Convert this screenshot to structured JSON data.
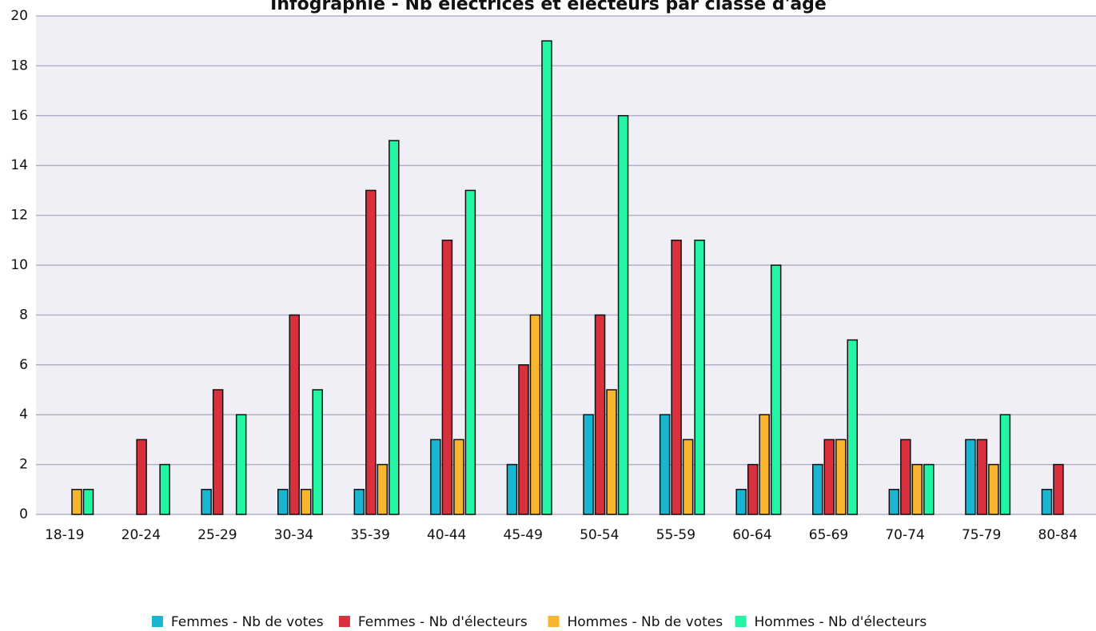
{
  "chart_data": {
    "type": "bar",
    "title": "Infographie - Nb électrices et électeurs par classe d'âge",
    "categories": [
      "18-19",
      "20-24",
      "25-29",
      "30-34",
      "35-39",
      "40-44",
      "45-49",
      "50-54",
      "55-59",
      "60-64",
      "65-69",
      "70-74",
      "75-79",
      "80-84"
    ],
    "series": [
      {
        "name": "Femmes - Nb de votes",
        "color": "#19b6d2",
        "values": [
          0,
          0,
          1,
          1,
          1,
          3,
          2,
          4,
          4,
          1,
          2,
          1,
          3,
          1
        ]
      },
      {
        "name": "Femmes - Nb d'électeurs",
        "color": "#d9303e",
        "values": [
          0,
          3,
          5,
          8,
          13,
          11,
          6,
          8,
          11,
          2,
          3,
          3,
          3,
          2
        ]
      },
      {
        "name": "Hommes - Nb de votes",
        "color": "#fab52e",
        "values": [
          1,
          0,
          0,
          1,
          2,
          3,
          8,
          5,
          3,
          4,
          3,
          2,
          2,
          0
        ]
      },
      {
        "name": "Hommes - Nb d'électeurs",
        "color": "#22f5a3",
        "values": [
          1,
          2,
          4,
          5,
          15,
          13,
          19,
          16,
          11,
          10,
          7,
          2,
          4,
          0
        ]
      }
    ],
    "ylim": [
      0,
      20
    ],
    "yticks": [
      0,
      2,
      4,
      6,
      8,
      10,
      12,
      14,
      16,
      18,
      20
    ],
    "grid": true,
    "legend": "bottom"
  }
}
